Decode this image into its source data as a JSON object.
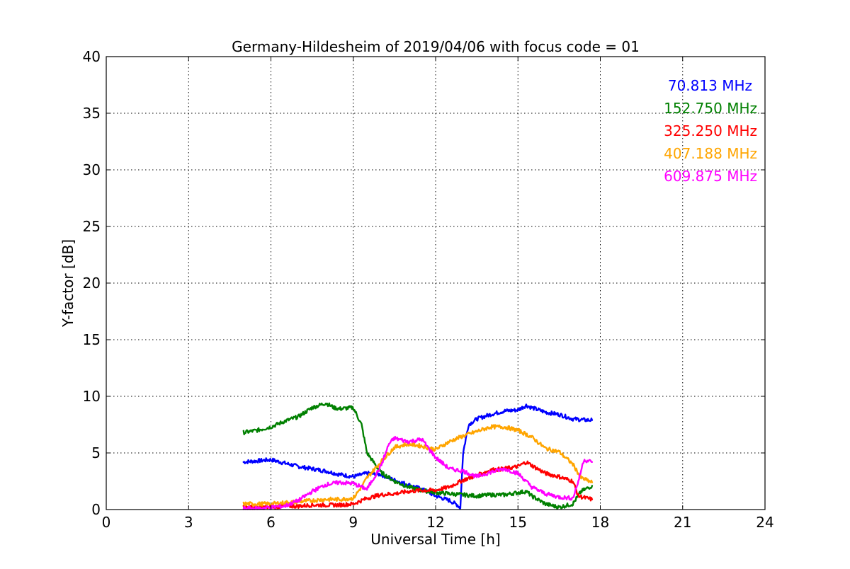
{
  "chart_data": {
    "type": "line",
    "title": "Germany-Hildesheim of 2019/04/06 with focus code = 01",
    "xlabel": "Universal Time [h]",
    "ylabel": "Y-factor [dB]",
    "xlim": [
      0,
      24
    ],
    "ylim": [
      0,
      40
    ],
    "xticks": [
      0,
      3,
      6,
      9,
      12,
      15,
      18,
      21,
      24
    ],
    "yticks": [
      0,
      5,
      10,
      15,
      20,
      25,
      30,
      35,
      40
    ],
    "grid": true,
    "legend_position": "top-right",
    "series": [
      {
        "name": "70.813 MHz",
        "color": "#0000ff",
        "x": [
          5.0,
          5.5,
          6.0,
          6.5,
          7.0,
          7.5,
          8.0,
          8.5,
          9.0,
          9.5,
          10.0,
          10.5,
          11.0,
          11.5,
          12.0,
          12.5,
          12.8,
          12.9,
          13.0,
          13.2,
          13.5,
          14.0,
          14.5,
          15.0,
          15.3,
          15.5,
          16.0,
          16.5,
          17.0,
          17.5,
          17.7
        ],
        "y": [
          4.2,
          4.3,
          4.4,
          4.1,
          3.8,
          3.6,
          3.4,
          3.1,
          2.9,
          3.2,
          3.1,
          2.6,
          2.2,
          1.8,
          1.2,
          0.8,
          0.4,
          0.1,
          5.0,
          7.5,
          8.0,
          8.4,
          8.7,
          8.8,
          9.2,
          9.0,
          8.6,
          8.4,
          8.0,
          7.9,
          7.9
        ]
      },
      {
        "name": "152.750 MHz",
        "color": "#008000",
        "x": [
          5.0,
          5.5,
          6.0,
          6.5,
          7.0,
          7.5,
          8.0,
          8.3,
          8.5,
          9.0,
          9.3,
          9.5,
          10.0,
          10.5,
          11.0,
          11.5,
          12.0,
          12.5,
          13.0,
          13.5,
          14.0,
          14.5,
          15.0,
          15.3,
          15.5,
          16.0,
          16.5,
          17.0,
          17.3,
          17.7
        ],
        "y": [
          6.8,
          7.0,
          7.3,
          7.8,
          8.2,
          9.0,
          9.4,
          9.0,
          8.9,
          9.0,
          7.5,
          5.0,
          3.3,
          2.5,
          2.0,
          1.7,
          1.5,
          1.4,
          1.3,
          1.2,
          1.3,
          1.3,
          1.5,
          1.6,
          1.2,
          0.5,
          0.2,
          0.5,
          1.6,
          2.1
        ]
      },
      {
        "name": "325.250 MHz",
        "color": "#ff0000",
        "x": [
          5.0,
          5.5,
          6.0,
          6.5,
          7.0,
          7.5,
          8.0,
          8.5,
          9.0,
          9.5,
          10.0,
          10.5,
          11.0,
          11.5,
          12.0,
          12.5,
          13.0,
          13.5,
          14.0,
          14.5,
          15.0,
          15.3,
          15.5,
          16.0,
          16.5,
          17.0,
          17.2,
          17.5,
          17.7
        ],
        "y": [
          0.2,
          0.2,
          0.2,
          0.3,
          0.3,
          0.4,
          0.4,
          0.4,
          0.5,
          1.0,
          1.3,
          1.4,
          1.6,
          1.7,
          1.7,
          2.0,
          2.6,
          3.0,
          3.5,
          3.6,
          3.8,
          4.2,
          3.9,
          3.2,
          2.9,
          2.5,
          1.2,
          1.0,
          0.9
        ]
      },
      {
        "name": "407.188 MHz",
        "color": "#ffa500",
        "x": [
          5.0,
          5.5,
          6.0,
          6.5,
          7.0,
          7.5,
          8.0,
          8.5,
          9.0,
          9.3,
          9.5,
          10.0,
          10.5,
          11.0,
          11.5,
          12.0,
          12.5,
          13.0,
          13.5,
          14.0,
          14.5,
          15.0,
          15.5,
          16.0,
          16.5,
          17.0,
          17.3,
          17.7
        ],
        "y": [
          0.5,
          0.5,
          0.5,
          0.6,
          0.7,
          0.8,
          0.9,
          0.9,
          1.0,
          2.0,
          2.8,
          4.2,
          5.5,
          5.8,
          5.6,
          5.3,
          6.0,
          6.5,
          6.9,
          7.3,
          7.3,
          7.0,
          6.4,
          5.4,
          5.1,
          4.0,
          2.8,
          2.4
        ]
      },
      {
        "name": "609.875 MHz",
        "color": "#ff00ff",
        "x": [
          5.0,
          5.5,
          6.0,
          6.5,
          7.0,
          7.5,
          8.0,
          8.5,
          9.0,
          9.5,
          10.0,
          10.3,
          10.5,
          11.0,
          11.5,
          12.0,
          12.5,
          13.0,
          13.5,
          14.0,
          14.5,
          15.0,
          15.5,
          16.0,
          16.5,
          17.0,
          17.2,
          17.4,
          17.7
        ],
        "y": [
          0.1,
          0.1,
          0.2,
          0.3,
          0.8,
          1.6,
          2.2,
          2.4,
          2.3,
          1.8,
          3.8,
          5.8,
          6.3,
          6.0,
          6.2,
          4.6,
          3.6,
          3.4,
          2.9,
          3.3,
          3.6,
          3.2,
          2.0,
          1.4,
          1.1,
          1.0,
          2.5,
          4.4,
          4.2
        ]
      }
    ]
  }
}
